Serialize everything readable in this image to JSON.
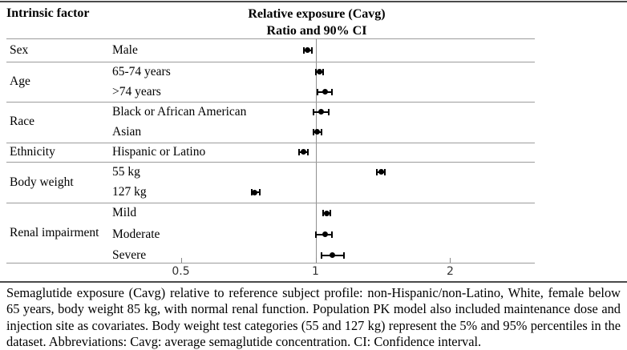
{
  "header": {
    "column1_label": "Intrinsic factor",
    "title_line1": "Relative exposure (Cavg)",
    "title_line2": "Ratio and 90% CI"
  },
  "chart_data": {
    "type": "forest",
    "x_scale": "log",
    "x_ticks": [
      0.5,
      1,
      2
    ],
    "x_tick_labels": [
      "0.5",
      "1",
      "2"
    ],
    "reference_value": 1,
    "xlim": [
      0.2,
      3.1
    ],
    "grid": "row-separators-only",
    "marker": "filled-black-circle-with-ci-caps",
    "groups": [
      {
        "factor": "Sex",
        "rows": [
          {
            "label": "Male",
            "ratio": 0.96,
            "ci_low": 0.94,
            "ci_high": 0.98
          }
        ]
      },
      {
        "factor": "Age",
        "rows": [
          {
            "label": "65-74 years",
            "ratio": 1.02,
            "ci_low": 1.0,
            "ci_high": 1.04
          },
          {
            "label": ">74 years",
            "ratio": 1.05,
            "ci_low": 1.01,
            "ci_high": 1.09
          }
        ]
      },
      {
        "factor": "Race",
        "rows": [
          {
            "label": "Black or African American",
            "ratio": 1.03,
            "ci_low": 0.99,
            "ci_high": 1.07
          },
          {
            "label": "Asian",
            "ratio": 1.01,
            "ci_low": 0.99,
            "ci_high": 1.03
          }
        ]
      },
      {
        "factor": "Ethnicity",
        "rows": [
          {
            "label": "Hispanic or Latino",
            "ratio": 0.94,
            "ci_low": 0.92,
            "ci_high": 0.96
          }
        ]
      },
      {
        "factor": "Body weight",
        "rows": [
          {
            "label": "55 kg",
            "ratio": 1.4,
            "ci_low": 1.37,
            "ci_high": 1.43
          },
          {
            "label": "127 kg",
            "ratio": 0.73,
            "ci_low": 0.72,
            "ci_high": 0.75
          }
        ]
      },
      {
        "factor": "Renal impairment",
        "rows": [
          {
            "label": "Mild",
            "ratio": 1.06,
            "ci_low": 1.04,
            "ci_high": 1.08
          },
          {
            "label": "Moderate",
            "ratio": 1.05,
            "ci_low": 1.0,
            "ci_high": 1.09
          },
          {
            "label": "Severe",
            "ratio": 1.09,
            "ci_low": 1.03,
            "ci_high": 1.16
          }
        ]
      }
    ]
  },
  "caption": {
    "lines": [
      "Semaglutide exposure (Cavg) relative to reference subject profile: non-Hispanic/non-Latino, White, female below",
      "65 years, body weight 85 kg, with normal renal function. Population PK model also included maintenance dose and",
      "injection site as covariates. Body weight test categories (55 and 127 kg) represent the 5% and 95% percentiles in the",
      "dataset. Abbreviations: Cavg: average semaglutide concentration. CI: Confidence interval."
    ]
  }
}
